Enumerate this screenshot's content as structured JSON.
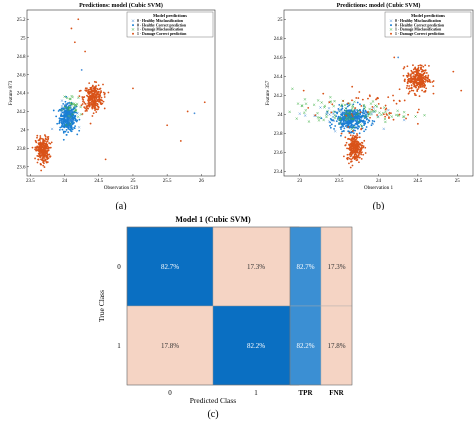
{
  "chart_data": [
    {
      "id": "a",
      "type": "scatter",
      "caption": "(a)",
      "title": "Predictions: model  (Cubic SVM)",
      "xlabel": "Observation 519",
      "ylabel": "Feature 873",
      "xlim": [
        23.45,
        26.2
      ],
      "ylim": [
        23.5,
        25.3
      ],
      "xticks": [
        23.5,
        24,
        24.5,
        25,
        25.5,
        26
      ],
      "xticklabels": [
        "23.5",
        "24",
        "24.5",
        "25",
        "25.5",
        "26"
      ],
      "yticks": [
        23.6,
        23.8,
        24,
        24.2,
        24.4,
        24.6,
        24.8,
        25,
        25.2
      ],
      "yticklabels": [
        "23.6",
        "23.8",
        "24",
        "24.2",
        "24.4",
        "24.6",
        "24.8",
        "25",
        "25.2"
      ],
      "legend_position": "top-right",
      "legend_title": "Model predictions",
      "legend": [
        {
          "label": "0 - Healthy Misclassification",
          "color": "#4a90d9",
          "marker": "x"
        },
        {
          "label": "0 - Healthy Correct prediction",
          "color": "#1a7fd4",
          "marker": "dot"
        },
        {
          "label": "1 - Damage Misclassification",
          "color": "#3cb043",
          "marker": "x"
        },
        {
          "label": "1 - Damage Correct prediction",
          "color": "#d95319",
          "marker": "dot"
        }
      ],
      "clusters": [
        {
          "class": "healthy-correct",
          "color": "#1a7fd4",
          "center": [
            24.05,
            24.13
          ],
          "spread": [
            0.06,
            0.07
          ],
          "count": 420
        },
        {
          "class": "damage-correct",
          "color": "#d95319",
          "center": [
            24.42,
            24.35
          ],
          "spread": [
            0.07,
            0.07
          ],
          "count": 320
        },
        {
          "class": "damage-correct",
          "color": "#d95319",
          "center": [
            23.68,
            23.78
          ],
          "spread": [
            0.05,
            0.07
          ],
          "count": 280
        },
        {
          "class": "damage-misclassified",
          "color": "#3cb043",
          "center": [
            24.12,
            24.25
          ],
          "spread": [
            0.07,
            0.07
          ],
          "count": 35
        },
        {
          "class": "healthy-misclassified",
          "color": "#4a90d9",
          "center": [
            24.1,
            24.15
          ],
          "spread": [
            0.1,
            0.08
          ],
          "count": 20
        }
      ],
      "outliers": [
        {
          "x": 24.1,
          "y": 25.1,
          "color": "#d95319"
        },
        {
          "x": 24.2,
          "y": 25.2,
          "color": "#d95319"
        },
        {
          "x": 24.15,
          "y": 24.95,
          "color": "#d95319"
        },
        {
          "x": 24.3,
          "y": 24.85,
          "color": "#d95319"
        },
        {
          "x": 25.0,
          "y": 24.45,
          "color": "#d95319"
        },
        {
          "x": 25.8,
          "y": 24.2,
          "color": "#d95319"
        },
        {
          "x": 25.5,
          "y": 24.05,
          "color": "#d95319"
        },
        {
          "x": 26.05,
          "y": 24.3,
          "color": "#d95319"
        },
        {
          "x": 25.7,
          "y": 23.88,
          "color": "#d95319"
        },
        {
          "x": 24.6,
          "y": 23.68,
          "color": "#d95319"
        },
        {
          "x": 25.9,
          "y": 24.18,
          "color": "#4a90d9"
        },
        {
          "x": 24.25,
          "y": 24.65,
          "color": "#4a90d9"
        }
      ]
    },
    {
      "id": "b",
      "type": "scatter",
      "caption": "(b)",
      "title": "Predictions: model  (Cubic SVM)",
      "xlabel": "Observation 1",
      "ylabel": "Feature 357",
      "xlim": [
        22.8,
        25.2
      ],
      "ylim": [
        23.35,
        25.1
      ],
      "xticks": [
        23,
        23.5,
        24,
        24.5,
        25
      ],
      "xticklabels": [
        "23",
        "23.5",
        "24",
        "24.5",
        "25"
      ],
      "yticks": [
        23.4,
        23.6,
        23.8,
        24,
        24.2,
        24.4,
        24.6,
        24.8,
        25
      ],
      "yticklabels": [
        "23.4",
        "23.6",
        "23.8",
        "24",
        "24.2",
        "24.4",
        "24.6",
        "24.8",
        "25"
      ],
      "legend_position": "top-right",
      "legend_title": "Model predictions",
      "legend": [
        {
          "label": "0 - Healthy Misclassification",
          "color": "#4a90d9",
          "marker": "x"
        },
        {
          "label": "0 - Healthy Correct prediction",
          "color": "#1a7fd4",
          "marker": "dot"
        },
        {
          "label": "1 - Damage Misclassification",
          "color": "#3cb043",
          "marker": "x"
        },
        {
          "label": "1 - Damage Correct prediction",
          "color": "#d95319",
          "marker": "dot"
        }
      ],
      "clusters": [
        {
          "class": "healthy-correct",
          "color": "#1a7fd4",
          "center": [
            23.65,
            23.95
          ],
          "spread": [
            0.1,
            0.06
          ],
          "count": 420
        },
        {
          "class": "damage-correct",
          "color": "#d95319",
          "center": [
            24.5,
            24.37
          ],
          "spread": [
            0.07,
            0.07
          ],
          "count": 300
        },
        {
          "class": "damage-correct",
          "color": "#d95319",
          "center": [
            23.7,
            23.65
          ],
          "spread": [
            0.05,
            0.07
          ],
          "count": 260
        },
        {
          "class": "damage-misclassified",
          "color": "#3cb043",
          "center": [
            23.6,
            24.02
          ],
          "spread": [
            0.35,
            0.07
          ],
          "count": 110
        },
        {
          "class": "healthy-misclassified",
          "color": "#4a90d9",
          "center": [
            23.5,
            24.0
          ],
          "spread": [
            0.25,
            0.06
          ],
          "count": 40
        },
        {
          "class": "damage-correct",
          "color": "#d95319",
          "center": [
            23.9,
            24.08
          ],
          "spread": [
            0.35,
            0.1
          ],
          "count": 60
        }
      ],
      "outliers": [
        {
          "x": 24.2,
          "y": 24.6,
          "color": "#d95319"
        },
        {
          "x": 24.25,
          "y": 24.6,
          "color": "#4a90d9"
        },
        {
          "x": 25.05,
          "y": 24.25,
          "color": "#d95319"
        },
        {
          "x": 24.95,
          "y": 24.45,
          "color": "#d95319"
        },
        {
          "x": 23.05,
          "y": 24.25,
          "color": "#d95319"
        },
        {
          "x": 24.5,
          "y": 23.9,
          "color": "#d95319"
        }
      ]
    },
    {
      "id": "c",
      "type": "heatmap",
      "caption": "(c)",
      "title": "Model 1 (Cubic SVM)",
      "xlabel": "Predicted Class",
      "ylabel": "True Class",
      "categories": [
        "0",
        "1"
      ],
      "matrix_labels": [
        [
          "82.7%",
          "17.3%"
        ],
        [
          "17.8%",
          "82.2%"
        ]
      ],
      "matrix": [
        [
          82.7,
          17.3
        ],
        [
          17.8,
          82.2
        ]
      ],
      "summary_headers": [
        "TPR",
        "FNR"
      ],
      "summary_labels": [
        [
          "82.7%",
          "17.3%"
        ],
        [
          "82.2%",
          "17.8%"
        ]
      ],
      "summary": [
        [
          82.7,
          17.3
        ],
        [
          82.2,
          17.8
        ]
      ],
      "colors": {
        "high": "#0a6fc2",
        "low": "#f5d4c4",
        "summary_tpr": "#3b8fd3",
        "summary_fnr": "#f5d4c4"
      }
    }
  ]
}
